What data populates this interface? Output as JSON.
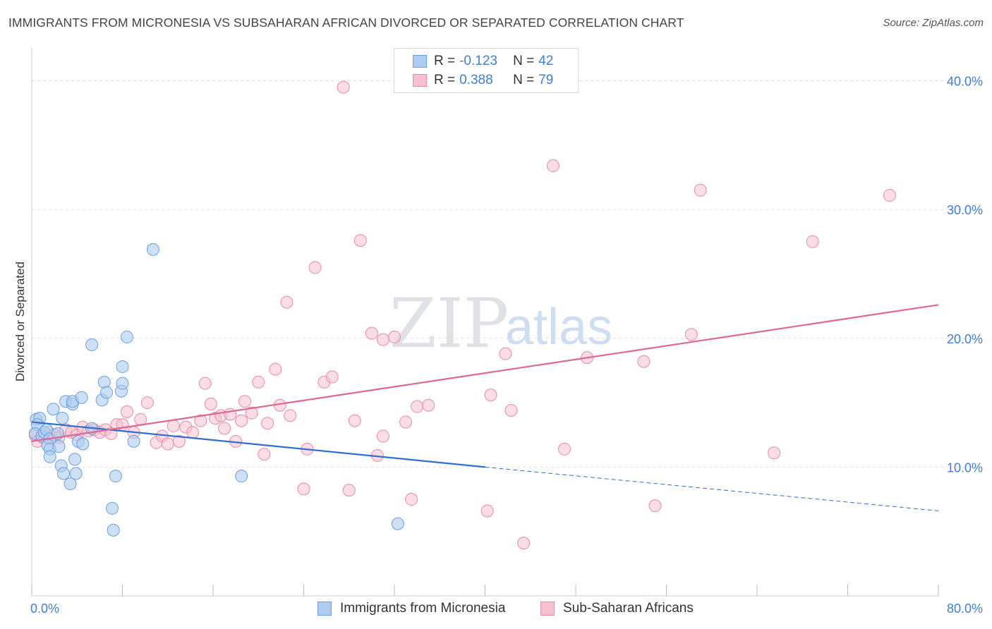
{
  "title": "IMMIGRANTS FROM MICRONESIA VS SUBSAHARAN AFRICAN DIVORCED OR SEPARATED CORRELATION CHART",
  "source": "Source: ZipAtlas.com",
  "watermark": {
    "zip": "ZIP",
    "atlas": "atlas"
  },
  "legend": {
    "rows": [
      {
        "r_label": "R =",
        "r_value": "-0.123",
        "n_label": "N =",
        "n_value": "42"
      },
      {
        "r_label": "R =",
        "r_value": "0.388",
        "n_label": "N =",
        "n_value": "79"
      }
    ]
  },
  "colors": {
    "blue_fill": "#aecbf0",
    "blue_stroke": "#6a9fe0",
    "blue_line": "#2f6fd0",
    "pink_fill": "#f7c1d0",
    "pink_stroke": "#e98aa6",
    "pink_line": "#e06694",
    "axis_text": "#3f7fd4",
    "grid": "#dddddd"
  },
  "chart_data": {
    "type": "scatter",
    "title": "IMMIGRANTS FROM MICRONESIA VS SUBSAHARAN AFRICAN DIVORCED OR SEPARATED CORRELATION CHART",
    "xlabel": "",
    "ylabel": "Divorced or Separated",
    "xlim": [
      0,
      80
    ],
    "ylim": [
      0,
      42
    ],
    "x_tick_labels": [
      "0.0%",
      "80.0%"
    ],
    "y_ticks": [
      10,
      20,
      30,
      40
    ],
    "y_tick_labels": [
      "10.0%",
      "20.0%",
      "30.0%",
      "40.0%"
    ],
    "grid": true,
    "legend_position": "bottom",
    "series": [
      {
        "name": "Immigrants from Micronesia",
        "color": "#aecbf0",
        "r": -0.123,
        "n": 42,
        "trend": {
          "x0": 0,
          "y0": 13.5,
          "x1": 40,
          "y1": 10.0,
          "dashed_to_x": 80,
          "dashed_to_y": 6.6
        },
        "points": [
          [
            0.4,
            13.7
          ],
          [
            0.7,
            13.8
          ],
          [
            0.5,
            13.3
          ],
          [
            0.3,
            12.6
          ],
          [
            0.9,
            12.4
          ],
          [
            1.1,
            12.7
          ],
          [
            1.3,
            12.9
          ],
          [
            1.6,
            12.2
          ],
          [
            1.4,
            11.7
          ],
          [
            1.6,
            11.4
          ],
          [
            1.6,
            10.8
          ],
          [
            2.4,
            11.6
          ],
          [
            1.9,
            14.5
          ],
          [
            2.7,
            13.8
          ],
          [
            3.0,
            15.1
          ],
          [
            3.6,
            14.9
          ],
          [
            3.6,
            15.1
          ],
          [
            4.4,
            15.4
          ],
          [
            4.1,
            12.0
          ],
          [
            4.5,
            11.8
          ],
          [
            3.8,
            10.6
          ],
          [
            2.6,
            10.1
          ],
          [
            2.8,
            9.5
          ],
          [
            3.4,
            8.7
          ],
          [
            3.9,
            9.5
          ],
          [
            5.3,
            19.5
          ],
          [
            6.2,
            15.2
          ],
          [
            6.4,
            16.6
          ],
          [
            6.6,
            15.8
          ],
          [
            7.9,
            15.9
          ],
          [
            8.0,
            17.8
          ],
          [
            8.0,
            16.5
          ],
          [
            8.4,
            20.1
          ],
          [
            9.0,
            12.0
          ],
          [
            10.7,
            26.9
          ],
          [
            7.4,
            9.3
          ],
          [
            7.1,
            6.8
          ],
          [
            7.2,
            5.1
          ],
          [
            18.5,
            9.3
          ],
          [
            32.3,
            5.6
          ],
          [
            5.3,
            13.0
          ],
          [
            2.3,
            12.6
          ]
        ]
      },
      {
        "name": "Sub-Saharan Africans",
        "color": "#f7c1d0",
        "r": 0.388,
        "n": 79,
        "trend": {
          "x0": 0,
          "y0": 12.0,
          "x1": 80,
          "y1": 22.6
        },
        "points": [
          [
            0.3,
            12.5
          ],
          [
            0.5,
            12.0
          ],
          [
            1.0,
            12.3
          ],
          [
            1.5,
            12.7
          ],
          [
            2.0,
            12.5
          ],
          [
            2.4,
            12.3
          ],
          [
            3.0,
            12.9
          ],
          [
            3.5,
            12.7
          ],
          [
            4.0,
            12.5
          ],
          [
            4.5,
            13.1
          ],
          [
            5.0,
            12.8
          ],
          [
            5.5,
            12.9
          ],
          [
            6.0,
            12.7
          ],
          [
            6.5,
            12.9
          ],
          [
            7.0,
            12.6
          ],
          [
            7.5,
            13.3
          ],
          [
            8.0,
            13.3
          ],
          [
            8.4,
            14.3
          ],
          [
            9.0,
            12.7
          ],
          [
            9.6,
            13.7
          ],
          [
            10.2,
            15.0
          ],
          [
            11.0,
            11.9
          ],
          [
            11.5,
            12.4
          ],
          [
            12.0,
            11.8
          ],
          [
            12.5,
            13.2
          ],
          [
            13.0,
            12.0
          ],
          [
            13.6,
            13.1
          ],
          [
            14.2,
            12.7
          ],
          [
            14.9,
            13.6
          ],
          [
            15.3,
            16.5
          ],
          [
            15.8,
            14.9
          ],
          [
            16.2,
            13.8
          ],
          [
            16.7,
            14.0
          ],
          [
            17.0,
            13.0
          ],
          [
            17.5,
            14.1
          ],
          [
            18.0,
            12.0
          ],
          [
            18.5,
            13.6
          ],
          [
            18.8,
            15.1
          ],
          [
            19.4,
            14.2
          ],
          [
            20.0,
            16.6
          ],
          [
            20.5,
            11.0
          ],
          [
            20.8,
            13.4
          ],
          [
            21.5,
            17.6
          ],
          [
            21.9,
            14.8
          ],
          [
            22.5,
            22.8
          ],
          [
            22.8,
            14.0
          ],
          [
            24.0,
            8.3
          ],
          [
            24.3,
            11.4
          ],
          [
            25.0,
            25.5
          ],
          [
            25.8,
            16.6
          ],
          [
            26.5,
            17.0
          ],
          [
            27.5,
            39.5
          ],
          [
            28.0,
            8.2
          ],
          [
            28.5,
            13.6
          ],
          [
            29.0,
            27.6
          ],
          [
            30.0,
            20.4
          ],
          [
            30.5,
            10.9
          ],
          [
            31.0,
            12.4
          ],
          [
            31.0,
            19.9
          ],
          [
            32.0,
            20.1
          ],
          [
            33.0,
            13.5
          ],
          [
            33.5,
            7.5
          ],
          [
            34.0,
            14.7
          ],
          [
            35.0,
            14.8
          ],
          [
            40.2,
            6.6
          ],
          [
            40.5,
            15.6
          ],
          [
            41.8,
            18.8
          ],
          [
            42.3,
            14.4
          ],
          [
            43.4,
            4.1
          ],
          [
            46.0,
            33.4
          ],
          [
            47.0,
            11.4
          ],
          [
            49.0,
            18.5
          ],
          [
            54.0,
            18.2
          ],
          [
            55.0,
            7.0
          ],
          [
            58.2,
            20.3
          ],
          [
            59.0,
            31.5
          ],
          [
            65.5,
            11.1
          ],
          [
            68.9,
            27.5
          ],
          [
            75.7,
            31.1
          ]
        ]
      }
    ]
  }
}
